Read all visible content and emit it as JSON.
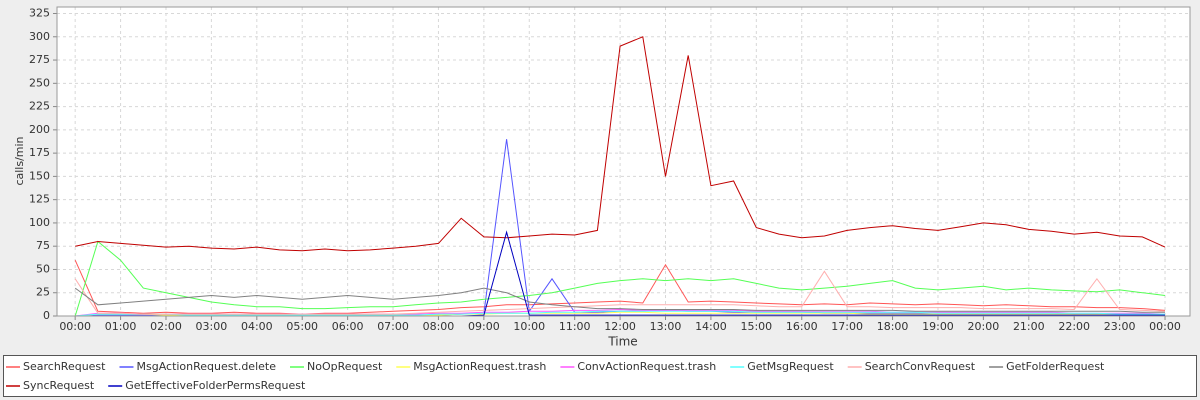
{
  "chart_data": {
    "type": "line",
    "ylabel": "calls/min",
    "xlabel": "Time",
    "xlim": [
      -0.4,
      24.55
    ],
    "ylim": [
      0,
      332
    ],
    "yticks": [
      0,
      25,
      50,
      75,
      100,
      125,
      150,
      175,
      200,
      225,
      250,
      275,
      300,
      325
    ],
    "xticks": [
      {
        "value": 0,
        "label": "00:00"
      },
      {
        "value": 1,
        "label": "01:00"
      },
      {
        "value": 2,
        "label": "02:00"
      },
      {
        "value": 3,
        "label": "03:00"
      },
      {
        "value": 4,
        "label": "04:00"
      },
      {
        "value": 5,
        "label": "05:00"
      },
      {
        "value": 6,
        "label": "06:00"
      },
      {
        "value": 7,
        "label": "07:00"
      },
      {
        "value": 8,
        "label": "08:00"
      },
      {
        "value": 9,
        "label": "09:00"
      },
      {
        "value": 10,
        "label": "10:00"
      },
      {
        "value": 11,
        "label": "11:00"
      },
      {
        "value": 12,
        "label": "12:00"
      },
      {
        "value": 13,
        "label": "13:00"
      },
      {
        "value": 14,
        "label": "14:00"
      },
      {
        "value": 15,
        "label": "15:00"
      },
      {
        "value": 16,
        "label": "16:00"
      },
      {
        "value": 17,
        "label": "17:00"
      },
      {
        "value": 18,
        "label": "18:00"
      },
      {
        "value": 19,
        "label": "19:00"
      },
      {
        "value": 20,
        "label": "20:00"
      },
      {
        "value": 21,
        "label": "21:00"
      },
      {
        "value": 22,
        "label": "22:00"
      },
      {
        "value": 23,
        "label": "23:00"
      },
      {
        "value": 24,
        "label": "00:00"
      }
    ],
    "grid": true,
    "legend": "bottom",
    "x": [
      0,
      0.5,
      1,
      1.5,
      2,
      2.5,
      3,
      3.5,
      4,
      4.5,
      5,
      5.5,
      6,
      6.5,
      7,
      7.5,
      8,
      8.5,
      9,
      9.5,
      10,
      10.5,
      11,
      11.5,
      12,
      12.5,
      13,
      13.5,
      14,
      14.5,
      15,
      15.5,
      16,
      16.5,
      17,
      17.5,
      18,
      18.5,
      19,
      19.5,
      20,
      20.5,
      21,
      21.5,
      22,
      22.5,
      23,
      23.5,
      24
    ],
    "series": [
      {
        "name": "SearchRequest",
        "color": "#ff5555",
        "values": [
          60,
          5,
          4,
          3,
          4,
          3,
          3,
          4,
          3,
          3,
          2,
          3,
          3,
          4,
          5,
          6,
          7,
          9,
          10,
          12,
          12,
          13,
          14,
          15,
          16,
          14,
          55,
          15,
          16,
          15,
          14,
          13,
          12,
          13,
          12,
          14,
          13,
          12,
          13,
          12,
          11,
          12,
          11,
          10,
          10,
          9,
          9,
          8,
          6
        ]
      },
      {
        "name": "MsgActionRequest.delete",
        "color": "#5555ff",
        "values": [
          0,
          1,
          1,
          1,
          1,
          1,
          1,
          1,
          1,
          1,
          1,
          1,
          1,
          1,
          1,
          1,
          1,
          2,
          3,
          190,
          5,
          40,
          4,
          4,
          5,
          5,
          6,
          5,
          5,
          4,
          4,
          4,
          4,
          3,
          3,
          3,
          3,
          3,
          3,
          3,
          3,
          3,
          3,
          3,
          2,
          2,
          2,
          2,
          2
        ]
      },
      {
        "name": "NoOpRequest",
        "color": "#55ff55",
        "values": [
          0,
          80,
          60,
          30,
          25,
          20,
          15,
          12,
          10,
          10,
          8,
          8,
          9,
          10,
          10,
          12,
          14,
          15,
          18,
          20,
          22,
          25,
          30,
          35,
          38,
          40,
          38,
          40,
          38,
          40,
          35,
          30,
          28,
          30,
          32,
          35,
          38,
          30,
          28,
          30,
          32,
          28,
          30,
          28,
          27,
          26,
          28,
          25,
          22
        ]
      },
      {
        "name": "MsgActionRequest.trash",
        "color": "#ffff55",
        "values": [
          0,
          2,
          2,
          2,
          1,
          1,
          1,
          1,
          1,
          1,
          1,
          1,
          1,
          1,
          1,
          1,
          1,
          2,
          2,
          3,
          3,
          3,
          3,
          3,
          4,
          4,
          3,
          3,
          3,
          3,
          3,
          3,
          3,
          3,
          3,
          2,
          2,
          2,
          2,
          2,
          2,
          2,
          2,
          2,
          2,
          2,
          2,
          2,
          1
        ]
      },
      {
        "name": "ConvActionRequest.trash",
        "color": "#ff55ff",
        "values": [
          0,
          3,
          3,
          2,
          2,
          2,
          2,
          2,
          2,
          2,
          2,
          2,
          2,
          2,
          2,
          2,
          3,
          3,
          4,
          4,
          5,
          5,
          6,
          6,
          7,
          6,
          6,
          6,
          6,
          6,
          5,
          5,
          5,
          5,
          5,
          5,
          4,
          4,
          4,
          4,
          4,
          4,
          4,
          4,
          3,
          3,
          3,
          3,
          2
        ]
      },
      {
        "name": "GetMsgRequest",
        "color": "#55ffff",
        "values": [
          0,
          2,
          2,
          2,
          2,
          1,
          1,
          1,
          1,
          1,
          1,
          1,
          1,
          1,
          1,
          1,
          2,
          2,
          3,
          3,
          3,
          4,
          4,
          5,
          5,
          5,
          5,
          5,
          5,
          5,
          4,
          4,
          4,
          4,
          4,
          4,
          4,
          4,
          3,
          3,
          3,
          3,
          3,
          3,
          3,
          3,
          2,
          2,
          2
        ]
      },
      {
        "name": "SearchConvRequest",
        "color": "#ffafaf",
        "values": [
          40,
          3,
          3,
          2,
          2,
          2,
          2,
          2,
          2,
          2,
          2,
          2,
          2,
          2,
          2,
          3,
          4,
          5,
          6,
          7,
          8,
          9,
          10,
          11,
          12,
          12,
          12,
          12,
          12,
          12,
          11,
          10,
          10,
          48,
          10,
          10,
          9,
          9,
          9,
          9,
          8,
          8,
          8,
          8,
          7,
          40,
          7,
          6,
          5
        ]
      },
      {
        "name": "GetFolderRequest",
        "color": "#808080",
        "values": [
          30,
          12,
          14,
          16,
          18,
          20,
          22,
          20,
          22,
          20,
          18,
          20,
          22,
          20,
          18,
          20,
          22,
          25,
          30,
          25,
          15,
          12,
          10,
          8,
          8,
          7,
          7,
          7,
          7,
          7,
          6,
          6,
          6,
          6,
          6,
          6,
          6,
          5,
          5,
          5,
          5,
          5,
          5,
          5,
          5,
          5,
          5,
          4,
          4
        ]
      },
      {
        "name": "SyncRequest",
        "color": "#c00000",
        "values": [
          75,
          80,
          78,
          76,
          74,
          75,
          73,
          72,
          74,
          71,
          70,
          72,
          70,
          71,
          73,
          75,
          78,
          105,
          85,
          84,
          86,
          88,
          87,
          92,
          290,
          300,
          150,
          280,
          140,
          145,
          95,
          88,
          84,
          86,
          92,
          95,
          97,
          94,
          92,
          96,
          100,
          98,
          93,
          91,
          88,
          90,
          86,
          85,
          74
        ]
      },
      {
        "name": "GetEffectiveFolderPermsRequest",
        "color": "#0000c0",
        "values": [
          0,
          0,
          0,
          0,
          0,
          0,
          0,
          0,
          0,
          0,
          0,
          0,
          0,
          0,
          0,
          0,
          0,
          0,
          1,
          90,
          1,
          1,
          1,
          1,
          1,
          1,
          1,
          1,
          1,
          1,
          1,
          1,
          1,
          1,
          1,
          1,
          1,
          1,
          1,
          1,
          1,
          1,
          1,
          1,
          1,
          1,
          1,
          1,
          1
        ]
      }
    ]
  }
}
